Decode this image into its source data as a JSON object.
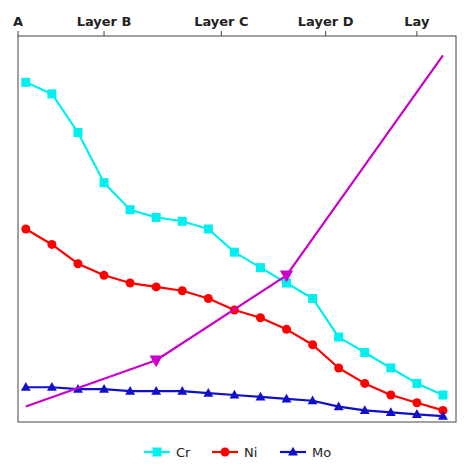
{
  "chart_data": {
    "type": "line",
    "xlim": [
      -0.3,
      16.5
    ],
    "ylim": [
      0,
      100
    ],
    "xticks": [
      {
        "value": -0.3,
        "label": "A"
      },
      {
        "value": 3.0,
        "label": "Layer B"
      },
      {
        "value": 7.5,
        "label": "Layer C"
      },
      {
        "value": 11.5,
        "label": "Layer D"
      },
      {
        "value": 15.0,
        "label": "Lay"
      }
    ],
    "tick_labels": "x",
    "grid": false,
    "legend": "bottom",
    "series": [
      {
        "name": "Cr",
        "color": "#00EFEF",
        "marker": "square",
        "line_style": "solid",
        "x": [
          0,
          1,
          2,
          3,
          4,
          5,
          6,
          7,
          8,
          9,
          10,
          11,
          12,
          13,
          14,
          15,
          16
        ],
        "values": [
          88,
          85,
          75,
          62,
          55,
          53,
          52,
          50,
          44,
          40,
          36,
          32,
          22,
          18,
          14,
          10,
          7
        ]
      },
      {
        "name": "Ni",
        "color": "#FF0000",
        "marker": "circle",
        "line_style": "solid",
        "x": [
          0,
          1,
          2,
          3,
          4,
          5,
          6,
          7,
          8,
          9,
          10,
          11,
          12,
          13,
          14,
          15,
          16
        ],
        "values": [
          50,
          46,
          41,
          38,
          36,
          35,
          34,
          32,
          29,
          27,
          24,
          20,
          14,
          10,
          7,
          5,
          3
        ]
      },
      {
        "name": "Mo",
        "color": "#1010CC",
        "marker": "triangle-up",
        "line_style": "solid",
        "x": [
          0,
          1,
          2,
          3,
          4,
          5,
          6,
          7,
          8,
          9,
          10,
          11,
          12,
          13,
          14,
          15,
          16
        ],
        "values": [
          9,
          9,
          8.5,
          8.5,
          8,
          8,
          8,
          7.5,
          7,
          6.5,
          6,
          5.5,
          4,
          3,
          2.5,
          2,
          1.5
        ]
      },
      {
        "color": "#CC00CC",
        "marker": "none",
        "line_style": "solid",
        "x": [
          0,
          5,
          10,
          16
        ],
        "values": [
          4,
          16,
          38,
          95
        ]
      },
      {
        "type": "scatter",
        "color": "#CC00CC",
        "marker": "triangle-down",
        "line_style": "none",
        "x": [
          5,
          10
        ],
        "values": [
          16,
          38
        ]
      }
    ]
  }
}
